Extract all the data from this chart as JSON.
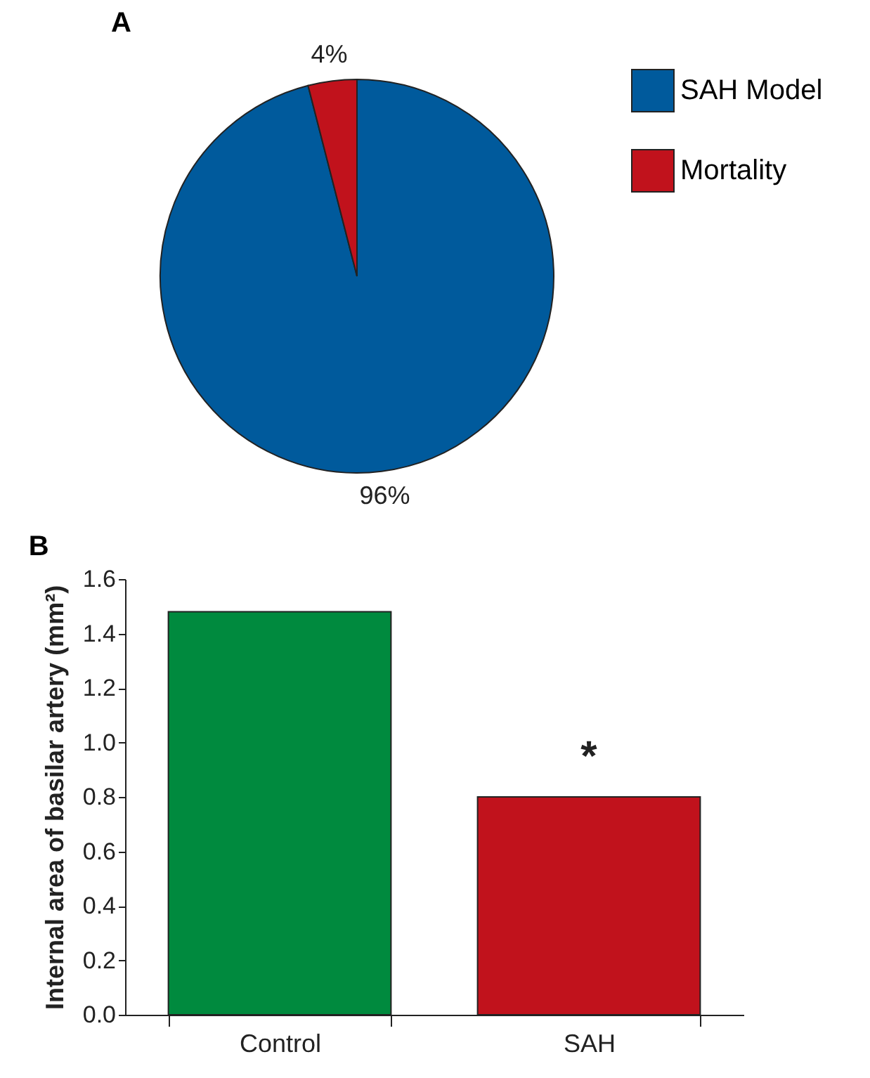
{
  "chart_data": [
    {
      "type": "pie",
      "title": "A",
      "categories": [
        "SAH Model",
        "Mortality"
      ],
      "values": [
        96,
        4
      ],
      "colors": [
        "#005a9c",
        "#c1121c"
      ],
      "value_labels": [
        "96%",
        "4%"
      ],
      "legend": "top right"
    },
    {
      "type": "bar",
      "title": "B",
      "ylabel": "Internal area of basilar artery (mm²)",
      "categories": [
        "Control",
        "SAH"
      ],
      "values": [
        1.48,
        0.8
      ],
      "colors": [
        "#008a3e",
        "#c1121c"
      ],
      "ylim": [
        0,
        1.6
      ],
      "yticks": [
        {
          "value": 0,
          "label": "0.0"
        },
        0.2,
        0.4,
        0.6,
        0.8,
        {
          "value": 1,
          "label": "1.0"
        },
        1.2,
        1.4,
        1.6
      ],
      "grid": false,
      "annotations": [
        {
          "text": "*",
          "x": "SAH",
          "y": 0.8
        }
      ]
    }
  ]
}
